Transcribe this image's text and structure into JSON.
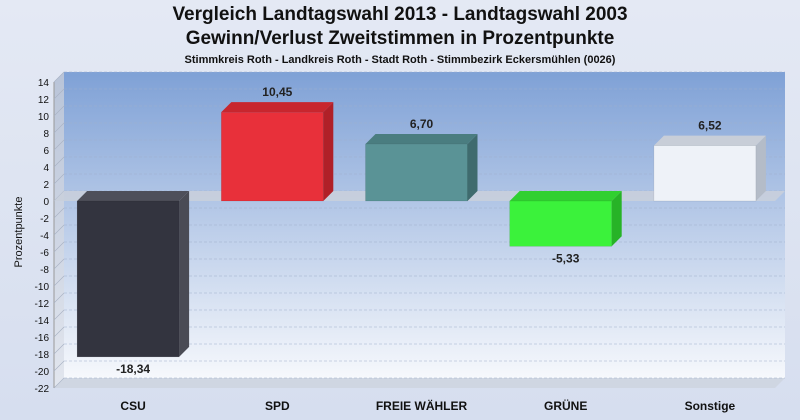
{
  "header": {
    "title": "Vergleich Landtagswahl 2013 - Landtagswahl 2003",
    "subtitle": "Gewinn/Verlust Zweitstimmen in Prozentpunkte",
    "subsubtitle": "Stimmkreis Roth - Landkreis Roth - Stadt Roth - Stimmbezirk Eckersmühlen (0026)"
  },
  "chart_data": {
    "type": "bar",
    "title": "Vergleich Landtagswahl 2013 - Landtagswahl 2003",
    "subtitle": "Gewinn/Verlust Zweitstimmen in Prozentpunkte",
    "xlabel": "",
    "ylabel": "Prozentpunkte",
    "ylim": [
      -22,
      14
    ],
    "yticks": [
      14,
      12,
      10,
      8,
      6,
      4,
      2,
      0,
      -2,
      -4,
      -6,
      -8,
      -10,
      -12,
      -14,
      -16,
      -18,
      -20,
      -22
    ],
    "grid": true,
    "categories": [
      "CSU",
      "SPD",
      "FREIE WÄHLER",
      "GRÜNE",
      "Sonstige"
    ],
    "values": [
      -18.34,
      10.45,
      6.7,
      -5.33,
      6.52
    ],
    "value_labels": [
      "-18,34",
      "10,45",
      "6,70",
      "-5,33",
      "6,52"
    ],
    "colors": [
      "#33343f",
      "#e8303a",
      "#5a9396",
      "#3bf23b",
      "#eef2f8"
    ],
    "side_colors": [
      "#4a4b55",
      "#b02028",
      "#3f6b6e",
      "#27b327",
      "#b4bcc8"
    ],
    "top_colors": [
      "#4e4f5a",
      "#c8262e",
      "#4a7d80",
      "#30d030",
      "#c8ced8"
    ]
  }
}
